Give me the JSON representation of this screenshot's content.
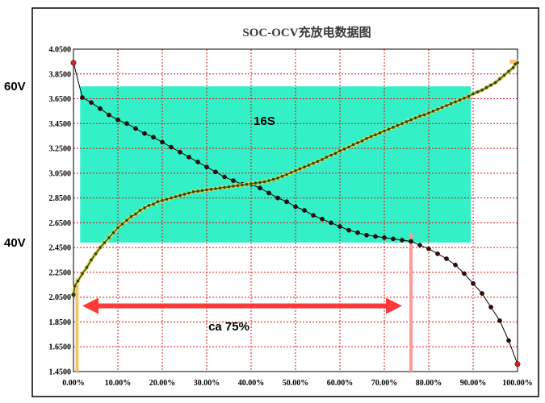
{
  "chart_data": {
    "type": "line",
    "title": "SOC-OCV充放电数据图",
    "xlim": [
      0,
      100
    ],
    "ylim": [
      1.45,
      4.05
    ],
    "x_ticks": [
      0,
      10,
      20,
      30,
      40,
      50,
      60,
      70,
      80,
      90,
      100
    ],
    "x_tick_labels": [
      "0.00%",
      "10.00%",
      "20.00%",
      "30.00%",
      "40.00%",
      "50.00%",
      "60.00%",
      "70.00%",
      "80.00%",
      "90.00%",
      "100.00%"
    ],
    "y_ticks": [
      1.45,
      1.65,
      1.85,
      2.05,
      2.25,
      2.45,
      2.65,
      2.85,
      3.05,
      3.25,
      3.45,
      3.65,
      3.85,
      4.05
    ],
    "y_tick_labels": [
      "1.4500",
      "1.6500",
      "1.8500",
      "2.0500",
      "2.2500",
      "2.4500",
      "2.6500",
      "2.8500",
      "3.0500",
      "3.2500",
      "3.4500",
      "3.6500",
      "3.8500",
      "4.0500"
    ],
    "grid": true,
    "series": [
      {
        "role": "discharge",
        "color": "#b01818",
        "points": [
          [
            0,
            3.94
          ],
          [
            2,
            3.66
          ],
          [
            4,
            3.62
          ],
          [
            6,
            3.57
          ],
          [
            8,
            3.52
          ],
          [
            10,
            3.48
          ],
          [
            12,
            3.45
          ],
          [
            14,
            3.41
          ],
          [
            16,
            3.37
          ],
          [
            18,
            3.34
          ],
          [
            20,
            3.3
          ],
          [
            22,
            3.26
          ],
          [
            24,
            3.22
          ],
          [
            26,
            3.18
          ],
          [
            28,
            3.14
          ],
          [
            30,
            3.1
          ],
          [
            32,
            3.06
          ],
          [
            34,
            3.02
          ],
          [
            36,
            2.99
          ],
          [
            38,
            2.96
          ],
          [
            40,
            2.96
          ],
          [
            42,
            2.93
          ],
          [
            44,
            2.89
          ],
          [
            46,
            2.85
          ],
          [
            48,
            2.82
          ],
          [
            50,
            2.78
          ],
          [
            52,
            2.75
          ],
          [
            54,
            2.71
          ],
          [
            56,
            2.68
          ],
          [
            58,
            2.65
          ],
          [
            60,
            2.62
          ],
          [
            62,
            2.59
          ],
          [
            64,
            2.57
          ],
          [
            66,
            2.55
          ],
          [
            68,
            2.54
          ],
          [
            70,
            2.53
          ],
          [
            72,
            2.52
          ],
          [
            74,
            2.51
          ],
          [
            76,
            2.5
          ],
          [
            78,
            2.47
          ],
          [
            80,
            2.44
          ],
          [
            82,
            2.4
          ],
          [
            84,
            2.36
          ],
          [
            86,
            2.31
          ],
          [
            88,
            2.24
          ],
          [
            90,
            2.16
          ],
          [
            92,
            2.08
          ],
          [
            94,
            1.97
          ],
          [
            96,
            1.86
          ],
          [
            98,
            1.7
          ],
          [
            100,
            1.51
          ]
        ]
      },
      {
        "role": "charge",
        "color": "#4a5a1a",
        "points": [
          [
            0,
            2.07
          ],
          [
            0.3,
            2.14
          ],
          [
            1,
            2.18
          ],
          [
            2,
            2.24
          ],
          [
            3,
            2.29
          ],
          [
            4,
            2.35
          ],
          [
            5,
            2.4
          ],
          [
            6,
            2.45
          ],
          [
            7,
            2.49
          ],
          [
            8,
            2.53
          ],
          [
            9,
            2.57
          ],
          [
            10,
            2.61
          ],
          [
            11,
            2.64
          ],
          [
            12,
            2.67
          ],
          [
            13,
            2.7
          ],
          [
            14,
            2.72
          ],
          [
            15,
            2.75
          ],
          [
            16,
            2.77
          ],
          [
            17,
            2.79
          ],
          [
            18,
            2.8
          ],
          [
            19,
            2.82
          ],
          [
            20,
            2.83
          ],
          [
            21,
            2.84
          ],
          [
            22,
            2.85
          ],
          [
            23,
            2.86
          ],
          [
            24,
            2.87
          ],
          [
            25,
            2.88
          ],
          [
            26,
            2.89
          ],
          [
            27,
            2.9
          ],
          [
            28,
            2.905
          ],
          [
            29,
            2.91
          ],
          [
            30,
            2.915
          ],
          [
            31,
            2.92
          ],
          [
            32,
            2.925
          ],
          [
            33,
            2.93
          ],
          [
            34,
            2.935
          ],
          [
            35,
            2.94
          ],
          [
            36,
            2.945
          ],
          [
            37,
            2.95
          ],
          [
            38,
            2.955
          ],
          [
            39,
            2.96
          ],
          [
            40,
            2.965
          ],
          [
            41,
            2.97
          ],
          [
            42,
            2.975
          ],
          [
            43,
            2.98
          ],
          [
            44,
            2.99
          ],
          [
            45,
            3.0
          ],
          [
            46,
            3.01
          ],
          [
            47,
            3.025
          ],
          [
            48,
            3.04
          ],
          [
            49,
            3.055
          ],
          [
            50,
            3.07
          ],
          [
            51,
            3.085
          ],
          [
            52,
            3.1
          ],
          [
            53,
            3.115
          ],
          [
            54,
            3.13
          ],
          [
            55,
            3.145
          ],
          [
            56,
            3.16
          ],
          [
            57,
            3.18
          ],
          [
            58,
            3.195
          ],
          [
            59,
            3.21
          ],
          [
            60,
            3.23
          ],
          [
            61,
            3.245
          ],
          [
            62,
            3.26
          ],
          [
            63,
            3.28
          ],
          [
            64,
            3.295
          ],
          [
            65,
            3.31
          ],
          [
            66,
            3.33
          ],
          [
            67,
            3.345
          ],
          [
            68,
            3.36
          ],
          [
            69,
            3.375
          ],
          [
            70,
            3.39
          ],
          [
            71,
            3.405
          ],
          [
            72,
            3.42
          ],
          [
            73,
            3.435
          ],
          [
            74,
            3.45
          ],
          [
            75,
            3.465
          ],
          [
            76,
            3.48
          ],
          [
            77,
            3.495
          ],
          [
            78,
            3.51
          ],
          [
            79,
            3.52
          ],
          [
            80,
            3.535
          ],
          [
            81,
            3.55
          ],
          [
            82,
            3.565
          ],
          [
            83,
            3.58
          ],
          [
            84,
            3.595
          ],
          [
            85,
            3.61
          ],
          [
            86,
            3.625
          ],
          [
            87,
            3.64
          ],
          [
            88,
            3.655
          ],
          [
            89,
            3.67
          ],
          [
            90,
            3.69
          ],
          [
            91,
            3.705
          ],
          [
            92,
            3.72
          ],
          [
            93,
            3.74
          ],
          [
            94,
            3.76
          ],
          [
            95,
            3.78
          ],
          [
            96,
            3.81
          ],
          [
            97,
            3.84
          ],
          [
            98,
            3.87
          ],
          [
            99,
            3.9
          ],
          [
            99.5,
            3.93
          ],
          [
            100,
            3.94
          ]
        ]
      }
    ],
    "highlight_band": {
      "color": "#33f0c8",
      "x_range": [
        1.5,
        89.5
      ],
      "y_range": [
        2.49,
        3.75
      ],
      "label": "16S",
      "label_at": [
        43,
        3.44
      ]
    },
    "side_labels": [
      {
        "text": "60V",
        "y": 3.75
      },
      {
        "text": "40V",
        "y": 2.49
      }
    ],
    "range_arrow": {
      "color": "#ff3838",
      "from": 2,
      "to": 74,
      "y": 1.98,
      "label": "ca 75%",
      "label_at": [
        35,
        1.78
      ]
    },
    "marker_lines": [
      {
        "x": 76,
        "y_top": 2.57,
        "color": "#ff9a9a"
      }
    ],
    "orange_markers": {
      "color": "#f6c76a",
      "x": [
        0.8,
        99.5
      ]
    }
  }
}
